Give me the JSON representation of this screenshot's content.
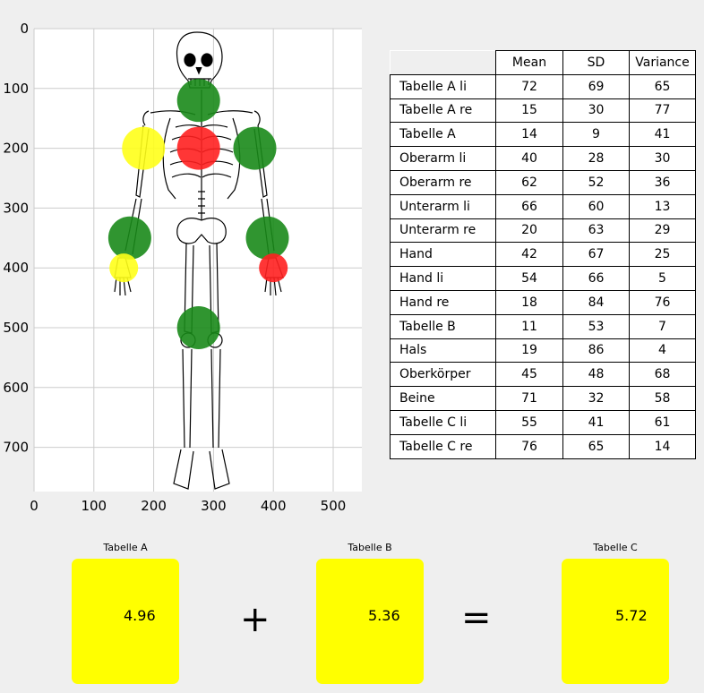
{
  "plot": {
    "x_ticks": [
      "0",
      "100",
      "200",
      "300",
      "400",
      "500"
    ],
    "y_ticks": [
      "0",
      "100",
      "200",
      "300",
      "400",
      "500",
      "600",
      "700"
    ],
    "markers": [
      {
        "label": "neck",
        "x": 275,
        "y": 120,
        "color": "#1a8a1a"
      },
      {
        "label": "shoulder-left",
        "x": 183,
        "y": 200,
        "color": "#ffff1a"
      },
      {
        "label": "chest",
        "x": 275,
        "y": 200,
        "color": "#ff2020"
      },
      {
        "label": "shoulder-right",
        "x": 369,
        "y": 200,
        "color": "#1a8a1a"
      },
      {
        "label": "elbow-left",
        "x": 160,
        "y": 350,
        "color": "#1a8a1a"
      },
      {
        "label": "elbow-right",
        "x": 390,
        "y": 350,
        "color": "#1a8a1a"
      },
      {
        "label": "hand-left",
        "x": 150,
        "y": 400,
        "color": "#ffff1a",
        "r": 24
      },
      {
        "label": "hand-right",
        "x": 400,
        "y": 400,
        "color": "#ff2020",
        "r": 24
      },
      {
        "label": "legs",
        "x": 275,
        "y": 500,
        "color": "#1a8a1a"
      }
    ],
    "colors": {
      "green": "#1a8a1a",
      "yellow": "#ffff1a",
      "red": "#ff2020"
    }
  },
  "table": {
    "headers": [
      "",
      "Mean",
      "SD",
      "Variance"
    ],
    "rows": [
      [
        "Tabelle A li",
        "72",
        "69",
        "65"
      ],
      [
        "Tabelle A re",
        "15",
        "30",
        "77"
      ],
      [
        "Tabelle A",
        "14",
        "9",
        "41"
      ],
      [
        "Oberarm li",
        "40",
        "28",
        "30"
      ],
      [
        "Oberarm re",
        "62",
        "52",
        "36"
      ],
      [
        "Unterarm li",
        "66",
        "60",
        "13"
      ],
      [
        "Unterarm re",
        "20",
        "63",
        "29"
      ],
      [
        "Hand",
        "42",
        "67",
        "25"
      ],
      [
        "Hand li",
        "54",
        "66",
        "5"
      ],
      [
        "Hand re",
        "18",
        "84",
        "76"
      ],
      [
        "Tabelle B",
        "11",
        "53",
        "7"
      ],
      [
        "Hals",
        "19",
        "86",
        "4"
      ],
      [
        "Oberkörper",
        "45",
        "48",
        "68"
      ],
      [
        "Beine",
        "71",
        "32",
        "58"
      ],
      [
        "Tabelle C li",
        "55",
        "41",
        "61"
      ],
      [
        "Tabelle C re",
        "76",
        "65",
        "14"
      ]
    ]
  },
  "scores": {
    "a": {
      "label": "Tabelle A",
      "value": "4.96"
    },
    "b": {
      "label": "Tabelle B",
      "value": "5.36"
    },
    "c": {
      "label": "Tabelle C",
      "value": "5.72"
    },
    "plus": "+",
    "equals": "=",
    "box_color": "#ffff00"
  }
}
